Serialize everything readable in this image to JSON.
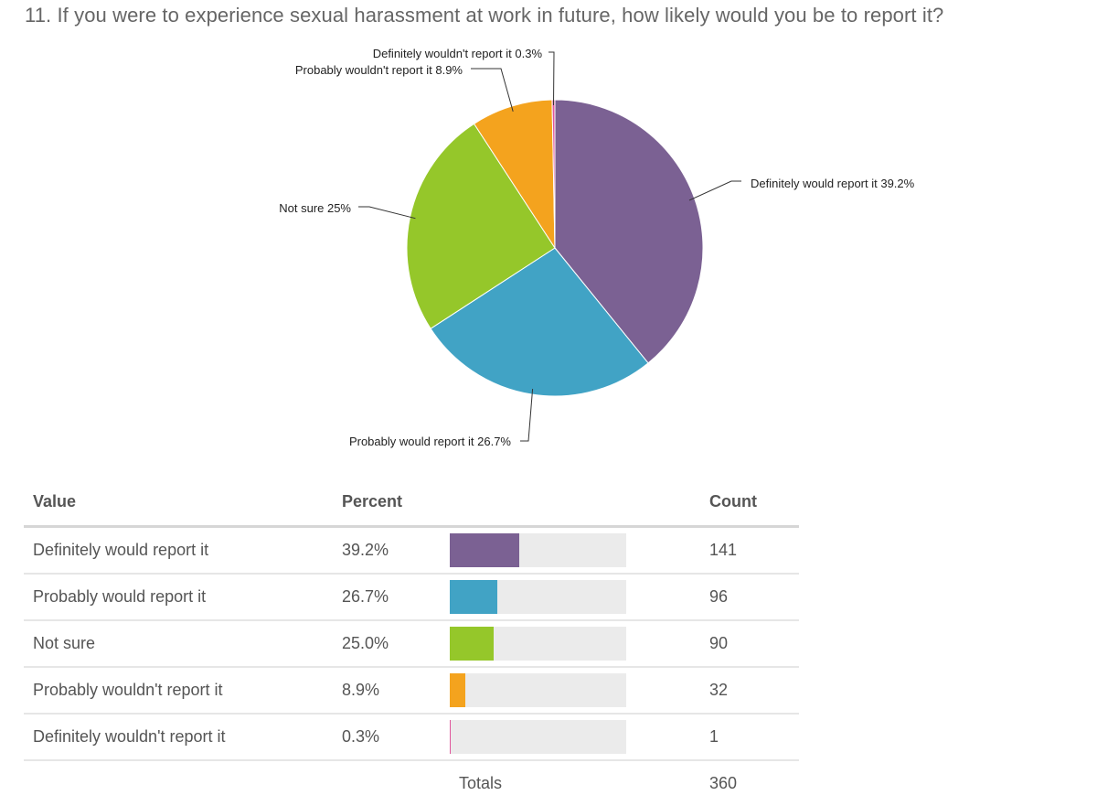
{
  "question": {
    "title": "11. If you were to experience sexual harassment at work in future, how likely would you be to report it?"
  },
  "chart_data": {
    "type": "pie",
    "slices": [
      {
        "label": "Definitely would report it",
        "percent_label": "39.2%",
        "value": 39.2,
        "color": "#7b6193"
      },
      {
        "label": "Probably would report it",
        "percent_label": "26.7%",
        "value": 26.7,
        "color": "#41a3c5"
      },
      {
        "label": "Not sure",
        "percent_label": "25%",
        "value": 25.0,
        "color": "#95c72a"
      },
      {
        "label": "Probably wouldn't report it",
        "percent_label": "8.9%",
        "value": 8.9,
        "color": "#f4a31e"
      },
      {
        "label": "Definitely wouldn't report it",
        "percent_label": "0.3%",
        "value": 0.3,
        "color": "#e0569c"
      }
    ]
  },
  "table": {
    "headers": {
      "value": "Value",
      "percent": "Percent",
      "count": "Count"
    },
    "rows": [
      {
        "value": "Definitely would report it",
        "percent": "39.2%",
        "fraction": 0.392,
        "count": "141",
        "color": "#7b6193"
      },
      {
        "value": "Probably would report it",
        "percent": "26.7%",
        "fraction": 0.267,
        "count": "96",
        "color": "#41a3c5"
      },
      {
        "value": "Not sure",
        "percent": "25.0%",
        "fraction": 0.25,
        "count": "90",
        "color": "#95c72a"
      },
      {
        "value": "Probably wouldn't report it",
        "percent": "8.9%",
        "fraction": 0.089,
        "count": "32",
        "color": "#f4a31e"
      },
      {
        "value": "Definitely wouldn't report it",
        "percent": "0.3%",
        "fraction": 0.003,
        "count": "1",
        "color": "#e0569c"
      }
    ],
    "totals": {
      "label": "Totals",
      "count": "360"
    }
  }
}
